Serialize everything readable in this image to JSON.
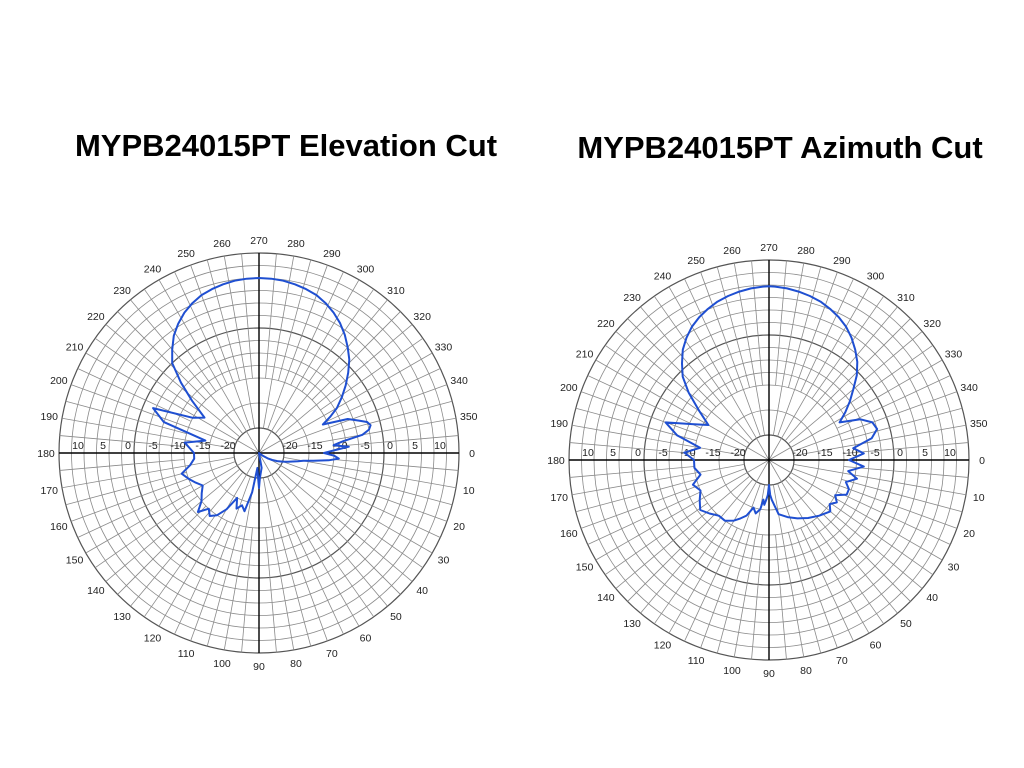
{
  "charts": {
    "left": {
      "title": "MYPB24015PT Elevation Cut"
    },
    "right": {
      "title": "MYPB24015PT Azimuth Cut"
    }
  },
  "colors": {
    "pattern": "#1f4fd1",
    "grid": "#8a8a8a",
    "axis": "#000000"
  },
  "chart_data": [
    {
      "type": "polar-line",
      "title": "MYPB24015PT Elevation Cut",
      "angle_ticks": [
        "0",
        "10",
        "20",
        "30",
        "40",
        "50",
        "60",
        "70",
        "80",
        "90",
        "100",
        "110",
        "120",
        "130",
        "140",
        "150",
        "160",
        "170",
        "180",
        "190",
        "200",
        "210",
        "220",
        "230",
        "240",
        "250",
        "260",
        "270",
        "280",
        "290",
        "300",
        "310",
        "320",
        "330",
        "340",
        "350"
      ],
      "radial_ticks": [
        "-20",
        "-15",
        "-10",
        "-5",
        "0",
        "5",
        "10"
      ],
      "rlim": [
        -25,
        15
      ],
      "angle_zero": "right",
      "angle_direction": "clockwise",
      "grid": true,
      "series": [
        {
          "angle": [
            180,
            188,
            193,
            198,
            203,
            208,
            213,
            218,
            222,
            226,
            230,
            234,
            238,
            242,
            246,
            250,
            254,
            258,
            262,
            266,
            270,
            274,
            278,
            282,
            286,
            290,
            294,
            298,
            302,
            306,
            310,
            314,
            318,
            322,
            326,
            330,
            333,
            336,
            339,
            342,
            344,
            346,
            348,
            350,
            352,
            354,
            356,
            358,
            0,
            2,
            4,
            6,
            8,
            10,
            12,
            14,
            17,
            20,
            24,
            28,
            32,
            36,
            40,
            48,
            56,
            64,
            72,
            80,
            88,
            90,
            92,
            96,
            100,
            104,
            108,
            112,
            116,
            120,
            124,
            128,
            132,
            136,
            140,
            145,
            150,
            155,
            160,
            165,
            170,
            175
          ],
          "value": [
            -12,
            -10,
            -14,
            -5,
            -2,
            -10,
            -12,
            -8,
            -4,
            0,
            2,
            4,
            5.5,
            6.8,
            7.8,
            8.6,
            9.1,
            9.5,
            9.8,
            9.95,
            10,
            9.95,
            9.8,
            9.5,
            9.1,
            8.6,
            7.8,
            6.8,
            5.6,
            4.2,
            2.6,
            1,
            -1,
            -3,
            -5,
            -7,
            -9,
            -11,
            -6,
            -4,
            -2.5,
            -2,
            -2.5,
            -4,
            -8,
            -10,
            -7,
            -10,
            -12,
            -10,
            -9,
            -11,
            -14,
            -16,
            -17,
            -18,
            -19,
            -20,
            -21,
            -22,
            -23,
            -24,
            -25,
            -25,
            -25,
            -25,
            -25,
            -22,
            -20,
            -18,
            -20,
            -22,
            -17,
            -13,
            -14,
            -13,
            -15,
            -12,
            -10,
            -9,
            -10,
            -8,
            -10,
            -11,
            -12,
            -11,
            -10,
            -9,
            -11,
            -12
          ]
        }
      ]
    },
    {
      "type": "polar-line",
      "title": "MYPB24015PT Azimuth Cut",
      "angle_ticks": [
        "0",
        "10",
        "20",
        "30",
        "40",
        "50",
        "60",
        "70",
        "80",
        "90",
        "100",
        "110",
        "120",
        "130",
        "140",
        "150",
        "160",
        "170",
        "180",
        "190",
        "200",
        "210",
        "220",
        "230",
        "240",
        "250",
        "260",
        "270",
        "280",
        "290",
        "300",
        "310",
        "320",
        "330",
        "340",
        "350"
      ],
      "radial_ticks": [
        "-20",
        "-15",
        "-10",
        "-5",
        "0",
        "5",
        "10"
      ],
      "rlim": [
        -25,
        15
      ],
      "angle_zero": "right",
      "angle_direction": "clockwise",
      "grid": true,
      "series": [
        {
          "angle": [
            180,
            185,
            190,
            195,
            200,
            205,
            210,
            215,
            220,
            224,
            228,
            232,
            236,
            240,
            244,
            248,
            252,
            256,
            260,
            264,
            268,
            270,
            272,
            276,
            280,
            284,
            288,
            292,
            296,
            300,
            304,
            308,
            312,
            316,
            320,
            324,
            328,
            332,
            336,
            340,
            344,
            348,
            352,
            356,
            0,
            4,
            8,
            12,
            16,
            20,
            24,
            28,
            32,
            36,
            40,
            48,
            56,
            64,
            72,
            80,
            86,
            88,
            90,
            92,
            94,
            96,
            98,
            100,
            104,
            108,
            112,
            116,
            120,
            126,
            132,
            138,
            144,
            150,
            156,
            162,
            168,
            174
          ],
          "value": [
            -10,
            -8,
            -11,
            -6,
            -3,
            -8,
            -11,
            -8,
            -4,
            -1,
            1,
            3,
            4.5,
            5.8,
            6.8,
            7.6,
            8.3,
            8.8,
            9.2,
            9.5,
            9.7,
            9.75,
            9.7,
            9.5,
            9.2,
            8.8,
            8.3,
            7.6,
            6.8,
            5.8,
            4.5,
            3,
            1.4,
            -0.6,
            -3,
            -5,
            -7,
            -9,
            -5,
            -3,
            -2.5,
            -4,
            -8,
            -6,
            -9,
            -6,
            -9,
            -7,
            -9,
            -8,
            -8,
            -10,
            -9,
            -10,
            -9,
            -10,
            -11,
            -12,
            -13,
            -14,
            -17,
            -18,
            -20,
            -18,
            -17,
            -16,
            -17,
            -15,
            -14,
            -15,
            -13,
            -12,
            -11,
            -10,
            -10,
            -9,
            -8,
            -9,
            -10,
            -9,
            -11,
            -10
          ]
        }
      ]
    }
  ]
}
